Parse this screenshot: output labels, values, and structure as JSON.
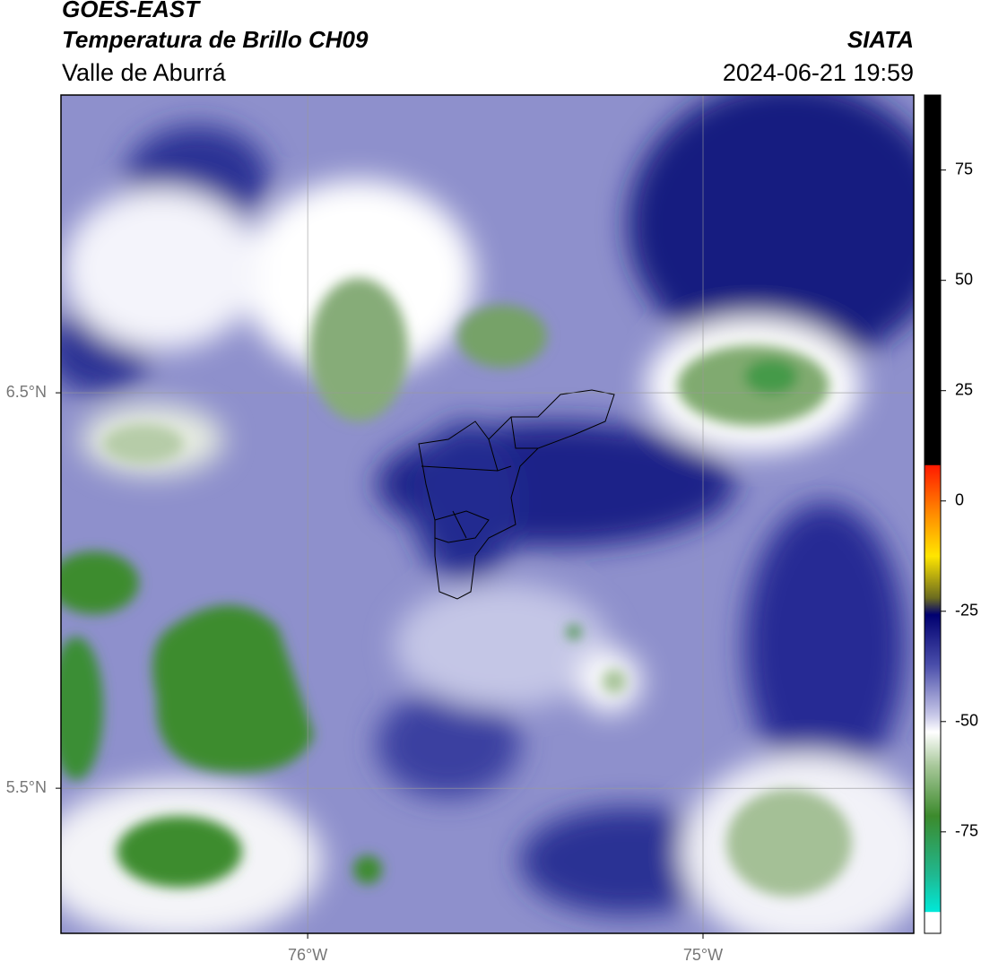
{
  "header": {
    "title": "GOES-EAST",
    "subtitle": "Temperatura de Brillo CH09",
    "region": "Valle de Aburrá",
    "source": "SIATA",
    "datetime": "2024-06-21 19:59"
  },
  "map": {
    "xlim": [
      -76.624,
      -74.467
    ],
    "ylim": [
      5.133,
      7.253
    ],
    "xticks": [
      {
        "value": -76,
        "label": "76°W"
      },
      {
        "value": -75,
        "label": "75°W"
      }
    ],
    "yticks": [
      {
        "value": 5.5,
        "label": "5.5°N"
      },
      {
        "value": 6.5,
        "label": "6.5°N"
      }
    ],
    "grid": true
  },
  "colorbar": {
    "lim": [
      -98,
      92
    ],
    "ticks": [
      -75,
      -50,
      -25,
      0,
      25,
      50,
      75
    ]
  }
}
